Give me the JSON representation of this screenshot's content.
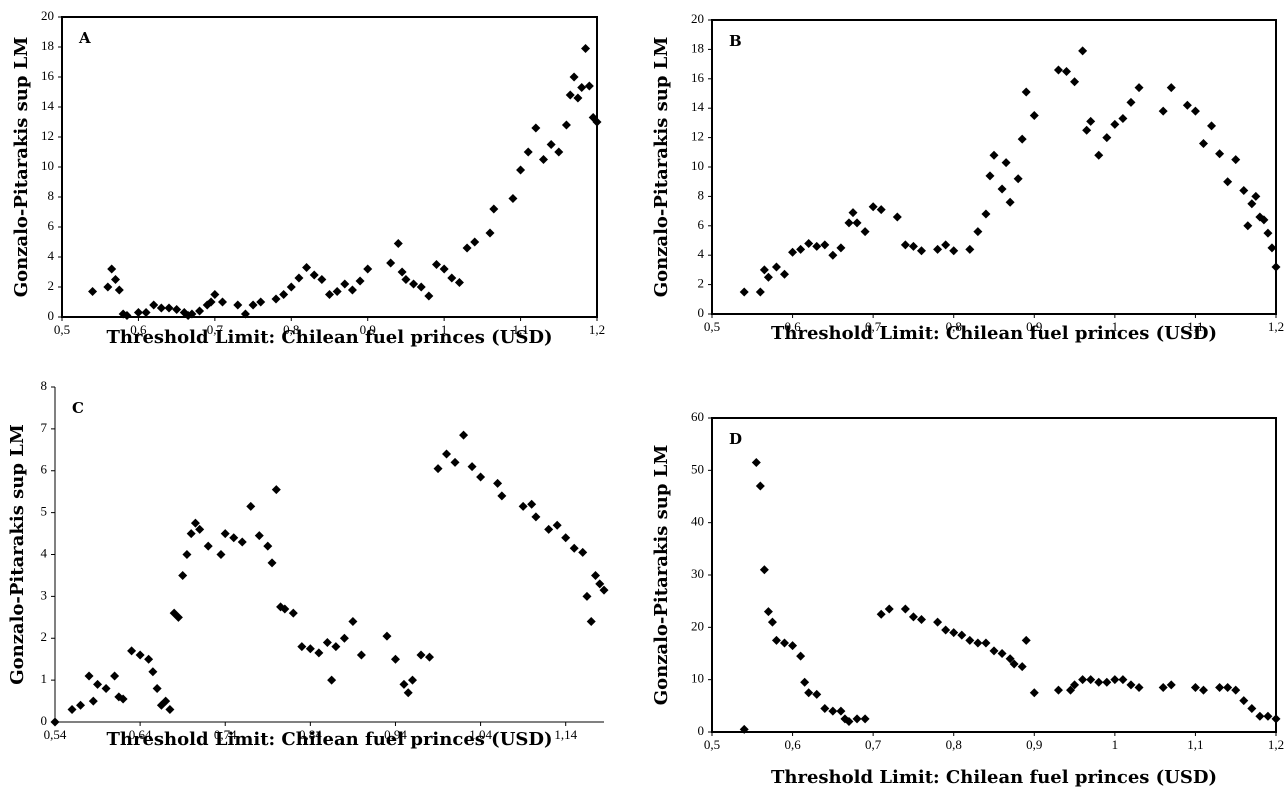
{
  "chart_data": [
    {
      "type": "scatter",
      "title": "A",
      "x_label": "Threshold Limit: Chilean fuel princes (USD)",
      "y_label": "Gonzalo-Pitarakis sup LM",
      "color": "#000000",
      "x": [
        0.54,
        0.56,
        0.565,
        0.57,
        0.575,
        0.58,
        0.585,
        0.6,
        0.61,
        0.62,
        0.63,
        0.64,
        0.65,
        0.66,
        0.665,
        0.67,
        0.68,
        0.69,
        0.695,
        0.7,
        0.71,
        0.73,
        0.74,
        0.75,
        0.76,
        0.78,
        0.79,
        0.8,
        0.81,
        0.82,
        0.83,
        0.84,
        0.85,
        0.86,
        0.87,
        0.88,
        0.89,
        0.9,
        0.93,
        0.94,
        0.945,
        0.95,
        0.96,
        0.97,
        0.98,
        0.99,
        1.0,
        1.01,
        1.02,
        1.03,
        1.04,
        1.06,
        1.065,
        1.09,
        1.1,
        1.11,
        1.12,
        1.13,
        1.14,
        1.15,
        1.16,
        1.165,
        1.17,
        1.175,
        1.18,
        1.185,
        1.19,
        1.195,
        1.2
      ],
      "values": [
        1.7,
        2.0,
        3.2,
        2.5,
        1.8,
        0.2,
        0.1,
        0.3,
        0.3,
        0.8,
        0.6,
        0.6,
        0.5,
        0.3,
        0.1,
        0.2,
        0.4,
        0.8,
        1.0,
        1.5,
        1.0,
        0.8,
        0.2,
        0.8,
        1.0,
        1.2,
        1.5,
        2.0,
        2.6,
        3.3,
        2.8,
        2.5,
        1.5,
        1.7,
        2.2,
        1.8,
        2.4,
        3.2,
        3.6,
        4.9,
        3.0,
        2.5,
        2.2,
        2.0,
        1.4,
        3.5,
        3.2,
        2.6,
        2.3,
        4.6,
        5.0,
        5.6,
        7.2,
        7.9,
        9.8,
        11.0,
        12.6,
        10.5,
        11.5,
        11.0,
        12.8,
        14.8,
        16.0,
        14.6,
        15.3,
        17.9,
        15.4,
        13.3,
        13.0
      ],
      "xlim": [
        0.5,
        1.2
      ],
      "xticks": [
        {
          "value": 0.5,
          "label": "0,5"
        },
        {
          "value": 0.6,
          "label": "0,6"
        },
        {
          "value": 0.7,
          "label": "0,7"
        },
        {
          "value": 0.8,
          "label": "0,8"
        },
        {
          "value": 0.9,
          "label": "0,9"
        },
        1,
        {
          "value": 1.1,
          "label": "1,1"
        },
        {
          "value": 1.2,
          "label": "1,2"
        }
      ],
      "ylim": [
        0,
        20
      ],
      "yticks": [
        0,
        2,
        4,
        6,
        8,
        10,
        12,
        14,
        16,
        18,
        20
      ]
    },
    {
      "type": "scatter",
      "title": "B",
      "x_label": "Threshold Limit: Chilean fuel princes (USD)",
      "y_label": "Gonzalo-Pitarakis sup LM",
      "color": "#000000",
      "x": [
        0.54,
        0.56,
        0.565,
        0.57,
        0.58,
        0.59,
        0.6,
        0.61,
        0.62,
        0.63,
        0.64,
        0.65,
        0.66,
        0.67,
        0.675,
        0.68,
        0.69,
        0.7,
        0.71,
        0.73,
        0.74,
        0.75,
        0.76,
        0.78,
        0.79,
        0.8,
        0.82,
        0.83,
        0.84,
        0.845,
        0.85,
        0.86,
        0.865,
        0.87,
        0.88,
        0.885,
        0.89,
        0.9,
        0.93,
        0.94,
        0.95,
        0.96,
        0.965,
        0.97,
        0.98,
        0.99,
        1.0,
        1.01,
        1.02,
        1.03,
        1.06,
        1.07,
        1.09,
        1.1,
        1.11,
        1.12,
        1.13,
        1.14,
        1.15,
        1.16,
        1.165,
        1.17,
        1.175,
        1.18,
        1.185,
        1.19,
        1.195,
        1.2
      ],
      "values": [
        1.5,
        1.5,
        3.0,
        2.5,
        3.2,
        2.7,
        4.2,
        4.4,
        4.8,
        4.6,
        4.7,
        4.0,
        4.5,
        6.2,
        6.9,
        6.2,
        5.6,
        7.3,
        7.1,
        6.6,
        4.7,
        4.6,
        4.3,
        4.4,
        4.7,
        4.3,
        4.4,
        5.6,
        6.8,
        9.4,
        10.8,
        8.5,
        10.3,
        7.6,
        9.2,
        11.9,
        15.1,
        13.5,
        16.6,
        16.5,
        15.8,
        17.9,
        12.5,
        13.1,
        10.8,
        12.0,
        12.9,
        13.3,
        14.4,
        15.4,
        13.8,
        15.4,
        14.2,
        13.8,
        11.6,
        12.8,
        10.9,
        9.0,
        10.5,
        8.4,
        6.0,
        7.5,
        8.0,
        6.6,
        6.4,
        5.5,
        4.5,
        3.2
      ],
      "xlim": [
        0.5,
        1.2
      ],
      "xticks": [
        {
          "value": 0.5,
          "label": "0,5"
        },
        {
          "value": 0.6,
          "label": "0,6"
        },
        {
          "value": 0.7,
          "label": "0,7"
        },
        {
          "value": 0.8,
          "label": "0,8"
        },
        {
          "value": 0.9,
          "label": "0,9"
        },
        1,
        {
          "value": 1.1,
          "label": "1,1"
        },
        {
          "value": 1.2,
          "label": "1,2"
        }
      ],
      "ylim": [
        0,
        20
      ],
      "yticks": [
        0,
        2,
        4,
        6,
        8,
        10,
        12,
        14,
        16,
        18,
        20
      ]
    },
    {
      "type": "scatter",
      "title": "C",
      "x_label": "Threshold Limit: Chilean fuel princes (USD)",
      "y_label": "Gonzalo-Pitarakis sup LM",
      "color": "#000000",
      "x": [
        0.54,
        0.56,
        0.57,
        0.58,
        0.585,
        0.59,
        0.6,
        0.61,
        0.615,
        0.62,
        0.63,
        0.64,
        0.65,
        0.655,
        0.66,
        0.665,
        0.67,
        0.675,
        0.68,
        0.685,
        0.69,
        0.695,
        0.7,
        0.705,
        0.71,
        0.72,
        0.735,
        0.74,
        0.75,
        0.76,
        0.77,
        0.78,
        0.79,
        0.795,
        0.8,
        0.805,
        0.81,
        0.82,
        0.83,
        0.84,
        0.85,
        0.86,
        0.865,
        0.87,
        0.88,
        0.89,
        0.9,
        0.93,
        0.94,
        0.95,
        0.955,
        0.96,
        0.97,
        0.98,
        0.99,
        1.0,
        1.01,
        1.02,
        1.03,
        1.04,
        1.06,
        1.065,
        1.09,
        1.1,
        1.105,
        1.12,
        1.13,
        1.14,
        1.15,
        1.16,
        1.165,
        1.17,
        1.175,
        1.18,
        1.185
      ],
      "values": [
        0.0,
        0.3,
        0.4,
        1.1,
        0.5,
        0.9,
        0.8,
        1.1,
        0.6,
        0.55,
        1.7,
        1.6,
        1.5,
        1.2,
        0.8,
        0.4,
        0.5,
        0.3,
        2.6,
        2.5,
        3.5,
        4.0,
        4.5,
        4.75,
        4.6,
        4.2,
        4.0,
        4.5,
        4.4,
        4.3,
        5.15,
        4.45,
        4.2,
        3.8,
        5.55,
        2.75,
        2.7,
        2.6,
        1.8,
        1.75,
        1.65,
        1.9,
        1.0,
        1.8,
        2.0,
        2.4,
        1.6,
        2.05,
        1.5,
        0.9,
        0.7,
        1.0,
        1.6,
        1.55,
        6.05,
        6.4,
        6.2,
        6.85,
        6.1,
        5.85,
        5.7,
        5.4,
        5.15,
        5.2,
        4.9,
        4.6,
        4.7,
        4.4,
        4.15,
        4.05,
        3.0,
        2.4,
        3.5,
        3.3,
        3.15
      ],
      "xlim": [
        0.54,
        1.185
      ],
      "xticks": [
        {
          "value": 0.54,
          "label": "0,54"
        },
        {
          "value": 0.64,
          "label": "0,64"
        },
        {
          "value": 0.74,
          "label": "0,74"
        },
        {
          "value": 0.84,
          "label": "0,84"
        },
        {
          "value": 0.94,
          "label": "0,94"
        },
        {
          "value": 1.04,
          "label": "1,04"
        },
        {
          "value": 1.14,
          "label": "1,14"
        }
      ],
      "ylim": [
        0,
        8
      ],
      "yticks": [
        0,
        1,
        2,
        3,
        4,
        5,
        6,
        7,
        8
      ]
    },
    {
      "type": "scatter",
      "title": "D",
      "x_label": "Threshold Limit: Chilean fuel princes (USD)",
      "y_label": "Gonzalo-Pitarakis sup LM",
      "color": "#000000",
      "x": [
        0.54,
        0.555,
        0.56,
        0.565,
        0.57,
        0.575,
        0.58,
        0.59,
        0.6,
        0.61,
        0.615,
        0.62,
        0.63,
        0.64,
        0.65,
        0.66,
        0.665,
        0.67,
        0.68,
        0.69,
        0.71,
        0.72,
        0.74,
        0.75,
        0.76,
        0.78,
        0.79,
        0.8,
        0.81,
        0.82,
        0.83,
        0.84,
        0.85,
        0.86,
        0.87,
        0.875,
        0.885,
        0.89,
        0.9,
        0.93,
        0.945,
        0.95,
        0.96,
        0.97,
        0.98,
        0.99,
        1.0,
        1.01,
        1.02,
        1.03,
        1.06,
        1.07,
        1.1,
        1.11,
        1.13,
        1.14,
        1.15,
        1.16,
        1.17,
        1.18,
        1.19,
        1.2
      ],
      "values": [
        0.5,
        51.5,
        47.0,
        31.0,
        23.0,
        21.0,
        17.5,
        17.0,
        16.5,
        14.5,
        9.5,
        7.5,
        7.2,
        4.5,
        4.0,
        4.0,
        2.5,
        2.0,
        2.5,
        2.5,
        22.5,
        23.5,
        23.5,
        22.0,
        21.5,
        21.0,
        19.5,
        19.0,
        18.5,
        17.5,
        17.0,
        17.0,
        15.5,
        15.0,
        14.0,
        13.0,
        12.5,
        17.5,
        7.5,
        8.0,
        8.0,
        9.0,
        10.0,
        10.0,
        9.5,
        9.5,
        10.0,
        10.0,
        9.0,
        8.5,
        8.5,
        9.0,
        8.5,
        8.0,
        8.5,
        8.5,
        8.0,
        6.0,
        4.5,
        3.0,
        3.0,
        2.5
      ],
      "xlim": [
        0.5,
        1.2
      ],
      "xticks": [
        {
          "value": 0.5,
          "label": "0,5"
        },
        {
          "value": 0.6,
          "label": "0,6"
        },
        {
          "value": 0.7,
          "label": "0,7"
        },
        {
          "value": 0.8,
          "label": "0,8"
        },
        {
          "value": 0.9,
          "label": "0,9"
        },
        1,
        {
          "value": 1.1,
          "label": "1,1"
        },
        {
          "value": 1.2,
          "label": "1,2"
        }
      ],
      "ylim": [
        0,
        60
      ],
      "yticks": [
        0,
        10,
        20,
        30,
        40,
        50,
        60
      ]
    }
  ]
}
